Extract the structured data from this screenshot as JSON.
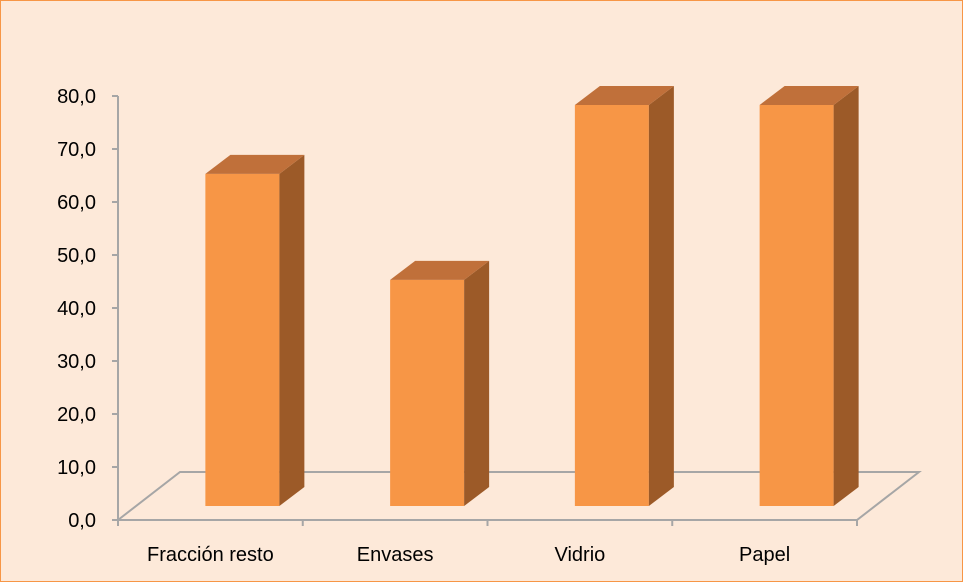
{
  "chart_data": {
    "type": "bar",
    "style": "3d-column",
    "categories": [
      "Fracción resto",
      "Envases",
      "Vidrio",
      "Papel"
    ],
    "values": [
      65.5,
      45.5,
      78.5,
      78.5
    ],
    "ylim": [
      0,
      80
    ],
    "yticks": [
      "0,0",
      "10,0",
      "20,0",
      "30,0",
      "40,0",
      "50,0",
      "60,0",
      "70,0",
      "80,0"
    ],
    "title": "",
    "xlabel": "",
    "ylabel": "",
    "grid": false,
    "legend": "none"
  },
  "colors": {
    "background": "#fde9d9",
    "border": "#f79646",
    "bar_front": "#f79646",
    "bar_side": "#9c5a28",
    "bar_top": "#c0703a",
    "axis": "#a6a6a6"
  }
}
